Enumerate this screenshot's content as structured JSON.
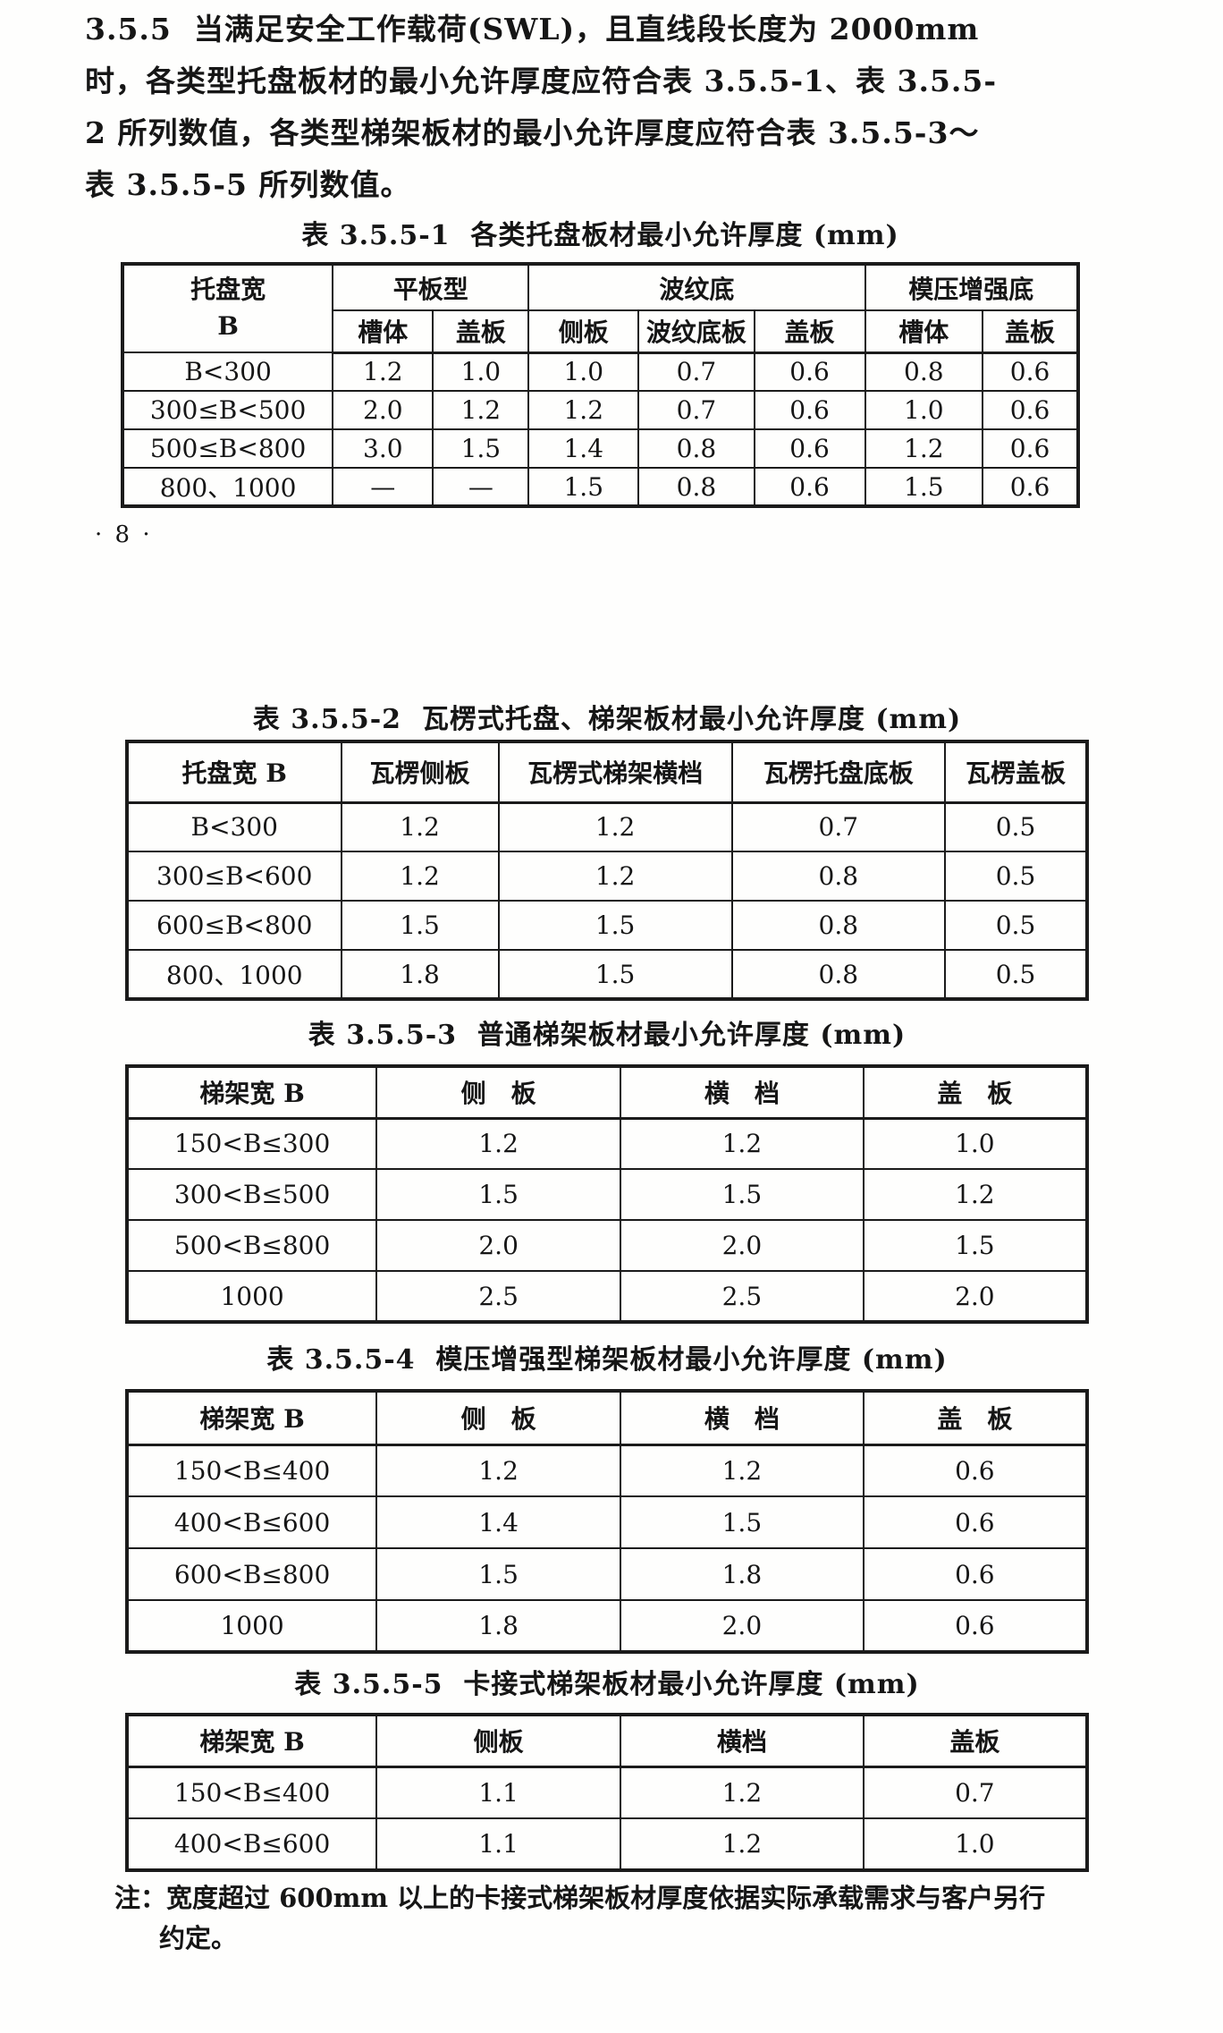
{
  "document": {
    "section": "3.5.5",
    "paragraph_lines": [
      "3.5.5  当满足安全工作载荷(SWL)，且直线段长度为 2000mm",
      "时，各类型托盘板材的最小允许厚度应符合表 3.5.5-1、表 3.5.5-",
      "2 所列数值，各类型梯架板材的最小允许厚度应符合表 3.5.5-3～",
      "表 3.5.5-5 所列数值。"
    ],
    "page_number": "· 8 ·",
    "note_lines": [
      "注：宽度超过 600mm 以上的卡接式梯架板材厚度依据实际承载需求与客户另行",
      "约定。"
    ]
  },
  "tables": [
    {
      "id": "3.5.5-1",
      "title": "表 3.5.5-1  各类托盘板材最小允许厚度 (mm)",
      "col1_header": [
        "托盘宽",
        "B"
      ],
      "groups": [
        {
          "label": "平板型",
          "cols": [
            "槽体",
            "盖板"
          ]
        },
        {
          "label": "波纹底",
          "cols": [
            "侧板",
            "波纹底板",
            "盖板"
          ]
        },
        {
          "label": "模压增强底",
          "cols": [
            "槽体",
            "盖板"
          ]
        }
      ],
      "rows": [
        {
          "label": "B<300",
          "values": [
            "1.2",
            "1.0",
            "1.0",
            "0.7",
            "0.6",
            "0.8",
            "0.6"
          ]
        },
        {
          "label": "300≤B<500",
          "values": [
            "2.0",
            "1.2",
            "1.2",
            "0.7",
            "0.6",
            "1.0",
            "0.6"
          ]
        },
        {
          "label": "500≤B<800",
          "values": [
            "3.0",
            "1.5",
            "1.4",
            "0.8",
            "0.6",
            "1.2",
            "0.6"
          ]
        },
        {
          "label": "800、1000",
          "values": [
            "—",
            "—",
            "1.5",
            "0.8",
            "0.6",
            "1.5",
            "0.6"
          ]
        }
      ]
    },
    {
      "id": "3.5.5-2",
      "title": "表 3.5.5-2  瓦楞式托盘、梯架板材最小允许厚度 (mm)",
      "headers": [
        "托盘宽 B",
        "瓦楞侧板",
        "瓦楞式梯架横档",
        "瓦楞托盘底板",
        "瓦楞盖板"
      ],
      "rows": [
        {
          "label": "B<300",
          "values": [
            "1.2",
            "1.2",
            "0.7",
            "0.5"
          ]
        },
        {
          "label": "300≤B<600",
          "values": [
            "1.2",
            "1.2",
            "0.8",
            "0.5"
          ]
        },
        {
          "label": "600≤B<800",
          "values": [
            "1.5",
            "1.5",
            "0.8",
            "0.5"
          ]
        },
        {
          "label": "800、1000",
          "values": [
            "1.8",
            "1.5",
            "0.8",
            "0.5"
          ]
        }
      ]
    },
    {
      "id": "3.5.5-3",
      "title": "表 3.5.5-3  普通梯架板材最小允许厚度 (mm)",
      "headers": [
        "梯架宽 B",
        "侧　板",
        "横　档",
        "盖　板"
      ],
      "rows": [
        {
          "label": "150<B≤300",
          "values": [
            "1.2",
            "1.2",
            "1.0"
          ]
        },
        {
          "label": "300<B≤500",
          "values": [
            "1.5",
            "1.5",
            "1.2"
          ]
        },
        {
          "label": "500<B≤800",
          "values": [
            "2.0",
            "2.0",
            "1.5"
          ]
        },
        {
          "label": "1000",
          "values": [
            "2.5",
            "2.5",
            "2.0"
          ]
        }
      ]
    },
    {
      "id": "3.5.5-4",
      "title": "表 3.5.5-4  模压增强型梯架板材最小允许厚度 (mm)",
      "headers": [
        "梯架宽 B",
        "侧　板",
        "横　档",
        "盖　板"
      ],
      "rows": [
        {
          "label": "150<B≤400",
          "values": [
            "1.2",
            "1.2",
            "0.6"
          ]
        },
        {
          "label": "400<B≤600",
          "values": [
            "1.4",
            "1.5",
            "0.6"
          ]
        },
        {
          "label": "600<B≤800",
          "values": [
            "1.5",
            "1.8",
            "0.6"
          ]
        },
        {
          "label": "1000",
          "values": [
            "1.8",
            "2.0",
            "0.6"
          ]
        }
      ]
    },
    {
      "id": "3.5.5-5",
      "title": "表 3.5.5-5  卡接式梯架板材最小允许厚度 (mm)",
      "headers": [
        "梯架宽 B",
        "侧板",
        "横档",
        "盖板"
      ],
      "rows": [
        {
          "label": "150<B≤400",
          "values": [
            "1.1",
            "1.2",
            "0.7"
          ]
        },
        {
          "label": "400<B≤600",
          "values": [
            "1.1",
            "1.2",
            "1.0"
          ]
        }
      ]
    }
  ]
}
